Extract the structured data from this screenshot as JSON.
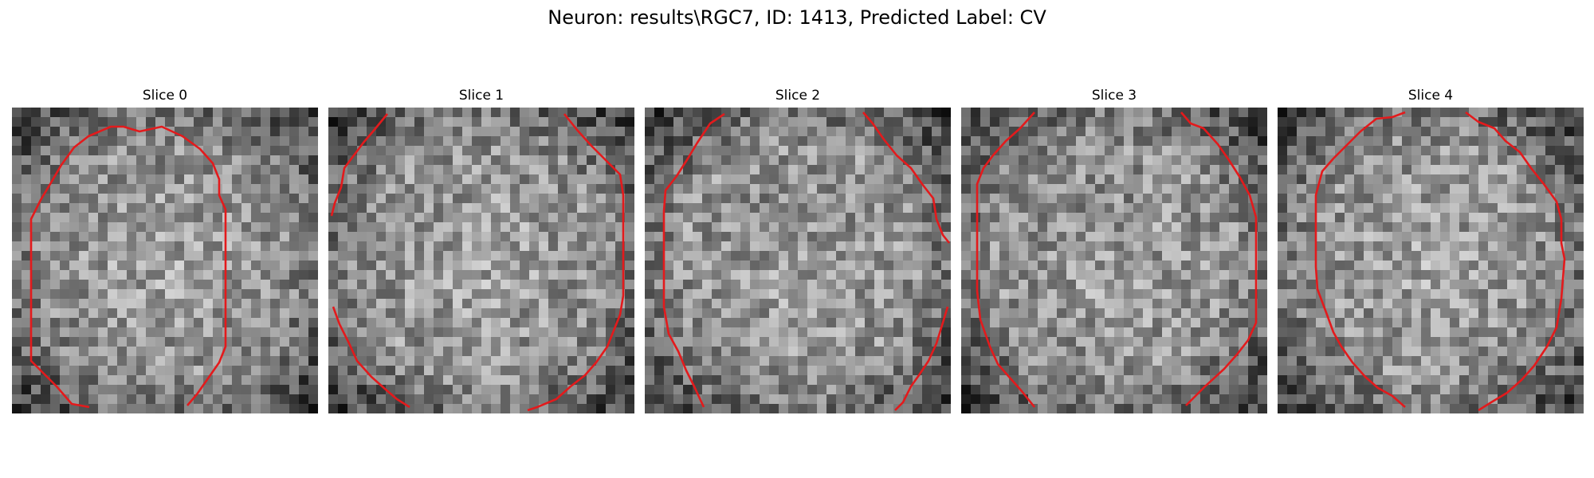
{
  "figure": {
    "title": "Neuron: results\\RGC7, ID: 1413, Predicted Label: CV",
    "contour_color": "#e31a1c",
    "colormap": "gray"
  },
  "slices": [
    {
      "title": "Slice 0"
    },
    {
      "title": "Slice 1"
    },
    {
      "title": "Slice 2"
    },
    {
      "title": "Slice 3"
    },
    {
      "title": "Slice 4"
    }
  ]
}
